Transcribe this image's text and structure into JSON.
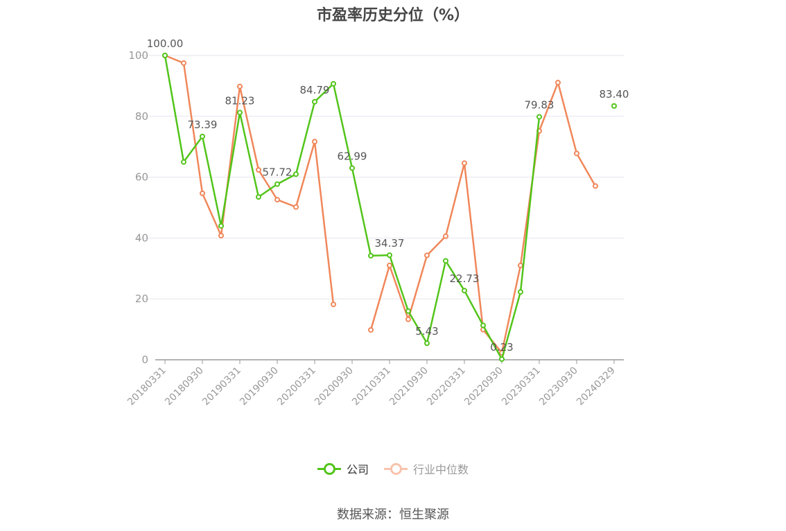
{
  "chart_data": {
    "type": "line",
    "title": "市盈率历史分位（%）",
    "x": [
      "20180331",
      "20180630",
      "20180930",
      "20181231",
      "20190331",
      "20190630",
      "20190930",
      "20191231",
      "20200331",
      "20200630",
      "20200930",
      "20201231",
      "20210331",
      "20210630",
      "20210930",
      "20211231",
      "20220331",
      "20220630",
      "20220930",
      "20221231",
      "20230331",
      "20230630",
      "20230930",
      "20231231",
      "20240329"
    ],
    "x_tick_labels": [
      "20180331",
      "20180930",
      "20190331",
      "20190930",
      "20200331",
      "20200930",
      "20210331",
      "20210930",
      "20220331",
      "20220930",
      "20230331",
      "20230930",
      "20240329"
    ],
    "ylim": [
      0,
      100
    ],
    "y_ticks": [
      0,
      20,
      40,
      60,
      80,
      100
    ],
    "grid": true,
    "legend_position": "bottom",
    "series": [
      {
        "name": "公司",
        "color": "#52c41a",
        "values": [
          100.0,
          65.0,
          73.39,
          44.0,
          81.23,
          53.5,
          57.72,
          61.0,
          84.79,
          90.7,
          62.99,
          34.2,
          34.37,
          16.0,
          5.43,
          32.5,
          22.73,
          11.3,
          0.23,
          22.3,
          79.83,
          null,
          null,
          null,
          83.4
        ],
        "labels": [
          {
            "index": 0,
            "text": "100.00"
          },
          {
            "index": 2,
            "text": "73.39"
          },
          {
            "index": 4,
            "text": "81.23"
          },
          {
            "index": 6,
            "text": "57.72"
          },
          {
            "index": 8,
            "text": "84.79"
          },
          {
            "index": 10,
            "text": "62.99"
          },
          {
            "index": 12,
            "text": "34.37"
          },
          {
            "index": 14,
            "text": "5.43"
          },
          {
            "index": 16,
            "text": "22.73"
          },
          {
            "index": 18,
            "text": "0.23"
          },
          {
            "index": 20,
            "text": "79.83"
          },
          {
            "index": 24,
            "text": "83.40"
          }
        ]
      },
      {
        "name": "行业中位数",
        "color": "#f0875a",
        "values": [
          100.0,
          97.5,
          54.7,
          40.8,
          89.8,
          62.4,
          52.6,
          50.2,
          71.7,
          18.2,
          null,
          9.8,
          31.0,
          13.3,
          34.3,
          40.6,
          64.6,
          9.9,
          2.3,
          31.0,
          75.2,
          91.1,
          67.8,
          57.1,
          null
        ]
      }
    ]
  },
  "legend": {
    "items": [
      {
        "label": "公司",
        "color": "#52c41a"
      },
      {
        "label": "行业中位数",
        "color": "#f0875a"
      }
    ]
  },
  "colors": {
    "axis": "#999999",
    "grid": "#e6e6ee",
    "label": "#555555",
    "legend_inactive_text": "#999999"
  },
  "source": "数据来源：恒生聚源"
}
